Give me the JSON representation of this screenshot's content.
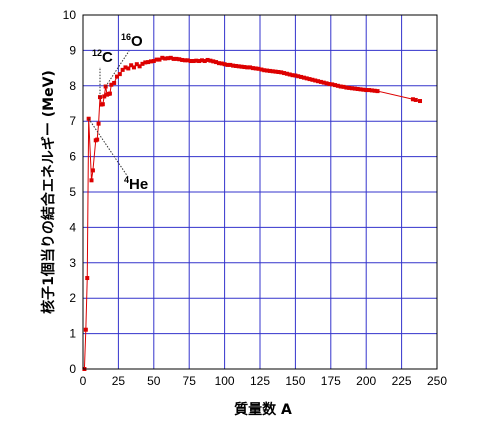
{
  "chart_data": {
    "type": "scatter",
    "title": "",
    "xlabel": "質量数 A",
    "ylabel": "核子1個当りの結合エネルギー (MeV)",
    "xlim": [
      0,
      250
    ],
    "ylim": [
      0,
      10
    ],
    "xticks": [
      "0",
      "25",
      "50",
      "75",
      "100",
      "125",
      "150",
      "175",
      "200",
      "225",
      "250"
    ],
    "yticks": [
      "0",
      "1",
      "2",
      "3",
      "4",
      "5",
      "6",
      "7",
      "8",
      "9",
      "10"
    ],
    "grid": true,
    "colors": {
      "grid": "#3333cc",
      "series": "#dd0000",
      "frame": "#000000"
    },
    "series": [
      {
        "name": "",
        "points": [
          [
            1,
            0.0
          ],
          [
            2,
            1.11
          ],
          [
            3,
            2.57
          ],
          [
            4,
            7.07
          ],
          [
            6,
            5.33
          ],
          [
            7,
            5.61
          ],
          [
            9,
            6.46
          ],
          [
            10,
            6.48
          ],
          [
            11,
            6.93
          ],
          [
            12,
            7.68
          ],
          [
            13,
            7.47
          ],
          [
            14,
            7.48
          ],
          [
            15,
            7.7
          ],
          [
            16,
            7.98
          ],
          [
            17,
            7.75
          ],
          [
            18,
            7.77
          ],
          [
            19,
            7.78
          ],
          [
            20,
            8.03
          ],
          [
            22,
            8.08
          ],
          [
            24,
            8.26
          ],
          [
            26,
            8.33
          ],
          [
            28,
            8.45
          ],
          [
            30,
            8.52
          ],
          [
            32,
            8.49
          ],
          [
            34,
            8.58
          ],
          [
            36,
            8.52
          ],
          [
            38,
            8.61
          ],
          [
            40,
            8.55
          ],
          [
            42,
            8.62
          ],
          [
            44,
            8.66
          ],
          [
            46,
            8.67
          ],
          [
            48,
            8.69
          ],
          [
            50,
            8.7
          ],
          [
            52,
            8.74
          ],
          [
            54,
            8.74
          ],
          [
            56,
            8.79
          ],
          [
            58,
            8.77
          ],
          [
            60,
            8.78
          ],
          [
            62,
            8.79
          ],
          [
            64,
            8.76
          ],
          [
            66,
            8.76
          ],
          [
            68,
            8.75
          ],
          [
            70,
            8.73
          ],
          [
            72,
            8.72
          ],
          [
            74,
            8.72
          ],
          [
            76,
            8.7
          ],
          [
            78,
            8.7
          ],
          [
            80,
            8.71
          ],
          [
            82,
            8.7
          ],
          [
            84,
            8.72
          ],
          [
            86,
            8.7
          ],
          [
            88,
            8.73
          ],
          [
            90,
            8.71
          ],
          [
            92,
            8.69
          ],
          [
            94,
            8.67
          ],
          [
            96,
            8.64
          ],
          [
            98,
            8.63
          ],
          [
            100,
            8.61
          ],
          [
            102,
            8.59
          ],
          [
            104,
            8.59
          ],
          [
            106,
            8.57
          ],
          [
            108,
            8.56
          ],
          [
            110,
            8.55
          ],
          [
            112,
            8.54
          ],
          [
            114,
            8.53
          ],
          [
            116,
            8.52
          ],
          [
            118,
            8.52
          ],
          [
            120,
            8.5
          ],
          [
            122,
            8.49
          ],
          [
            124,
            8.48
          ],
          [
            126,
            8.46
          ],
          [
            128,
            8.44
          ],
          [
            130,
            8.43
          ],
          [
            132,
            8.42
          ],
          [
            134,
            8.41
          ],
          [
            136,
            8.4
          ],
          [
            138,
            8.39
          ],
          [
            140,
            8.38
          ],
          [
            142,
            8.36
          ],
          [
            144,
            8.34
          ],
          [
            146,
            8.32
          ],
          [
            148,
            8.3
          ],
          [
            150,
            8.29
          ],
          [
            152,
            8.27
          ],
          [
            154,
            8.25
          ],
          [
            156,
            8.23
          ],
          [
            158,
            8.21
          ],
          [
            160,
            8.19
          ],
          [
            162,
            8.17
          ],
          [
            164,
            8.15
          ],
          [
            166,
            8.13
          ],
          [
            168,
            8.11
          ],
          [
            170,
            8.09
          ],
          [
            172,
            8.07
          ],
          [
            174,
            8.05
          ],
          [
            176,
            8.04
          ],
          [
            178,
            8.02
          ],
          [
            180,
            8.0
          ],
          [
            182,
            7.98
          ],
          [
            184,
            7.97
          ],
          [
            186,
            7.95
          ],
          [
            188,
            7.94
          ],
          [
            190,
            7.93
          ],
          [
            192,
            7.92
          ],
          [
            194,
            7.91
          ],
          [
            196,
            7.9
          ],
          [
            198,
            7.89
          ],
          [
            200,
            7.88
          ],
          [
            202,
            7.88
          ],
          [
            204,
            7.87
          ],
          [
            206,
            7.86
          ],
          [
            208,
            7.85
          ],
          [
            233,
            7.62
          ],
          [
            235,
            7.6
          ],
          [
            238,
            7.57
          ]
        ]
      }
    ],
    "annotations": [
      {
        "sup": "12",
        "label": "C",
        "x": 12,
        "y": 7.68
      },
      {
        "sup": "16",
        "label": "O",
        "x": 16,
        "y": 7.98
      },
      {
        "sup": "4",
        "label": "He",
        "x": 4,
        "y": 7.07
      }
    ]
  }
}
